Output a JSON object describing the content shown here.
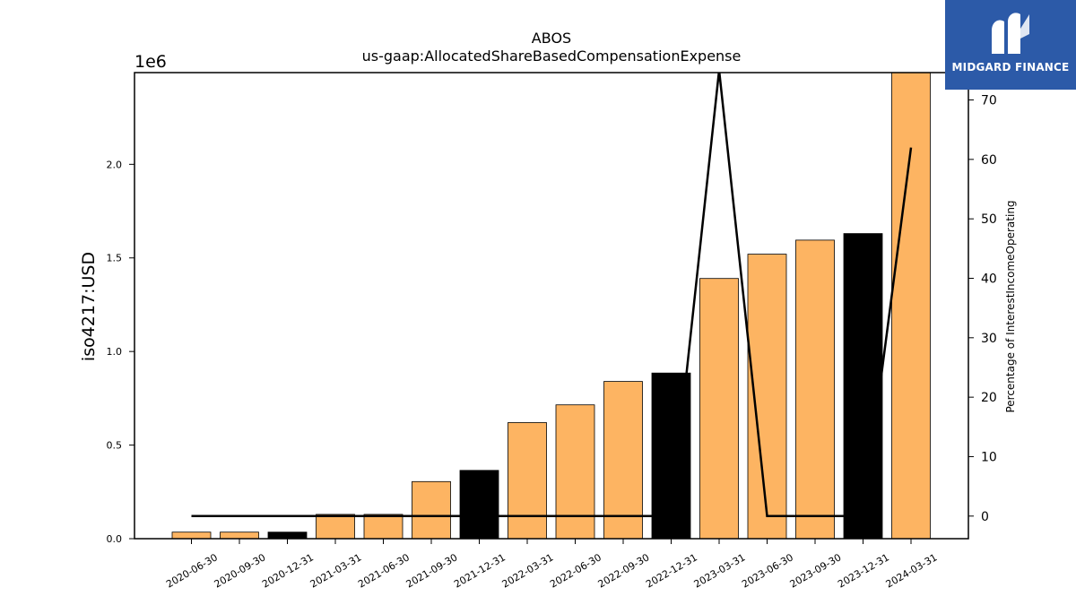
{
  "chart_data": {
    "type": "bar",
    "title": "ABOS",
    "subtitle": "us-gaap:AllocatedShareBasedCompensationExpense",
    "ylabel": "iso4217:USD",
    "y_scale_label": "1e6",
    "y2label": "Percentage of InterestIncomeOperating",
    "ylim": [
      0,
      2490000
    ],
    "y2lim": [
      -3.8,
      74.6
    ],
    "yticks": [
      0.0,
      0.5,
      1.0,
      1.5,
      2.0
    ],
    "ytick_labels": [
      "0.0",
      "0.5",
      "1.0",
      "1.5",
      "2.0"
    ],
    "y2ticks": [
      0,
      10,
      20,
      30,
      40,
      50,
      60,
      70
    ],
    "y2tick_labels": [
      "0",
      "10",
      "20",
      "30",
      "40",
      "50",
      "60",
      "70"
    ],
    "categories": [
      "2020-06-30",
      "2020-09-30",
      "2020-12-31",
      "2021-03-31",
      "2021-06-30",
      "2021-09-30",
      "2021-12-31",
      "2022-03-31",
      "2022-06-30",
      "2022-09-30",
      "2022-12-31",
      "2023-03-31",
      "2023-06-30",
      "2023-09-30",
      "2023-12-31",
      "2024-03-31"
    ],
    "series": [
      {
        "type": "bar",
        "values": [
          35000,
          35000,
          35000,
          130000,
          130000,
          305000,
          365000,
          620000,
          715000,
          840000,
          885000,
          1390000,
          1520000,
          1595000,
          1630000,
          2490000
        ],
        "colors": [
          "#fdb462",
          "#fdb462",
          "#000000",
          "#fdb462",
          "#fdb462",
          "#fdb462",
          "#000000",
          "#fdb462",
          "#fdb462",
          "#fdb462",
          "#000000",
          "#fdb462",
          "#fdb462",
          "#fdb462",
          "#000000",
          "#fdb462"
        ]
      },
      {
        "type": "line",
        "axis": "right",
        "color": "#000000",
        "values": [
          0,
          0,
          0,
          0,
          0,
          0,
          0,
          0,
          0,
          0,
          0,
          75,
          0,
          0,
          0,
          62
        ]
      }
    ]
  },
  "logo": {
    "text": "MIDGARD FINANCE",
    "bg": "#2c5aa8"
  }
}
